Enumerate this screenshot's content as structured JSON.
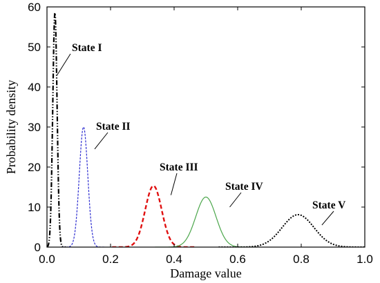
{
  "chart_data": {
    "type": "line",
    "title": "",
    "xlabel": "Damage value",
    "ylabel": "Probability density",
    "xlim": [
      0.0,
      1.0
    ],
    "ylim": [
      0,
      60
    ],
    "x_ticks": [
      "0.0",
      "0.2",
      "0.4",
      "0.6",
      "0.8",
      "1.0"
    ],
    "x_tick_values": [
      0.0,
      0.2,
      0.4,
      0.6,
      0.8,
      1.0
    ],
    "y_ticks": [
      "0",
      "10",
      "20",
      "30",
      "40",
      "50",
      "60"
    ],
    "y_tick_values": [
      0,
      10,
      20,
      30,
      40,
      50,
      60
    ],
    "grid": false,
    "legend": "none",
    "series": [
      {
        "name": "State I",
        "distribution": "normal",
        "peak_x": 0.025,
        "peak_y": 58.5,
        "sigma": 0.0068,
        "line_style": "dash-dot-dot",
        "color": "#000000"
      },
      {
        "name": "State II",
        "distribution": "normal",
        "peak_x": 0.115,
        "peak_y": 30,
        "sigma": 0.0133,
        "line_style": "fine-dashed",
        "color": "#2b2bd0"
      },
      {
        "name": "State III",
        "distribution": "normal",
        "peak_x": 0.335,
        "peak_y": 15.3,
        "sigma": 0.026,
        "line_style": "dashed",
        "color": "#e01010"
      },
      {
        "name": "State IV",
        "distribution": "normal",
        "peak_x": 0.5,
        "peak_y": 12.5,
        "sigma": 0.032,
        "line_style": "solid",
        "color": "#4aa64a"
      },
      {
        "name": "State V",
        "distribution": "normal",
        "peak_x": 0.79,
        "peak_y": 8.1,
        "sigma": 0.05,
        "line_style": "dotted",
        "color": "#000000"
      }
    ],
    "annotations": [
      {
        "text": "State I",
        "target_x": 0.032,
        "target_y": 43
      },
      {
        "text": "State II",
        "target_x": 0.15,
        "target_y": 24.5
      },
      {
        "text": "State III",
        "target_x": 0.39,
        "target_y": 13
      },
      {
        "text": "State IV",
        "target_x": 0.575,
        "target_y": 10
      },
      {
        "text": "State V",
        "target_x": 0.865,
        "target_y": 5.5
      }
    ]
  }
}
